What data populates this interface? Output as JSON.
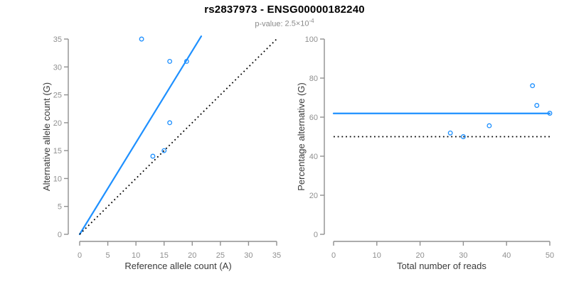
{
  "figure": {
    "title": "rs2837973 - ENSG00000182240",
    "subtitle": {
      "label": "p-value:",
      "mantissa": "2.5",
      "times_sign": "×",
      "base": "10",
      "exponent": "-4"
    }
  },
  "colors": {
    "point_and_fit_blue": "#1E90FF",
    "dotted_line_black": "#000000",
    "axis_gray": "#909090",
    "tick_label_gray": "#8f8f8f",
    "axis_title_dark": "#3a3a3a",
    "title_black": "#000000",
    "subtitle_gray": "#8a8a8a",
    "background": "#ffffff"
  },
  "chart_data": [
    {
      "type": "scatter",
      "name": "allele-counts",
      "title": "",
      "xlabel": "Reference allele count (A)",
      "ylabel": "Alternative allele count (G)",
      "xlim": [
        0,
        35
      ],
      "ylim": [
        0,
        35
      ],
      "xticks": [
        0,
        5,
        10,
        15,
        20,
        25,
        30,
        35
      ],
      "yticks": [
        0,
        5,
        10,
        15,
        20,
        25,
        30,
        35
      ],
      "grid": false,
      "legend": null,
      "points": [
        [
          11,
          35
        ],
        [
          13,
          14
        ],
        [
          15,
          15
        ],
        [
          16,
          20
        ],
        [
          16,
          31
        ],
        [
          19,
          31
        ]
      ],
      "lines": [
        {
          "name": "fit-line",
          "style": "solid",
          "color_key": "point_and_fit_blue",
          "x": [
            0,
            21.6
          ],
          "y": [
            0,
            35.5
          ]
        },
        {
          "name": "identity-line",
          "style": "dotted",
          "color_key": "dotted_line_black",
          "x": [
            0,
            35
          ],
          "y": [
            0,
            35
          ]
        }
      ]
    },
    {
      "type": "scatter",
      "name": "percentage-vs-reads",
      "title": "",
      "xlabel": "Total number of reads",
      "ylabel": "Percentage alternative (G)",
      "xlim": [
        0,
        50
      ],
      "ylim": [
        0,
        100
      ],
      "xticks": [
        0,
        10,
        20,
        30,
        40,
        50
      ],
      "yticks": [
        0,
        20,
        40,
        60,
        80,
        100
      ],
      "grid": false,
      "legend": null,
      "points": [
        [
          27,
          51.9
        ],
        [
          30,
          50
        ],
        [
          36,
          55.6
        ],
        [
          46,
          76.1
        ],
        [
          47,
          66
        ],
        [
          50,
          62
        ]
      ],
      "lines": [
        {
          "name": "mean-percentage-line",
          "style": "solid",
          "color_key": "point_and_fit_blue",
          "x": [
            0,
            50
          ],
          "y": [
            61.9,
            61.9
          ]
        },
        {
          "name": "fifty-percent-line",
          "style": "dotted",
          "color_key": "dotted_line_black",
          "x": [
            0,
            50
          ],
          "y": [
            50,
            50
          ]
        }
      ]
    }
  ]
}
